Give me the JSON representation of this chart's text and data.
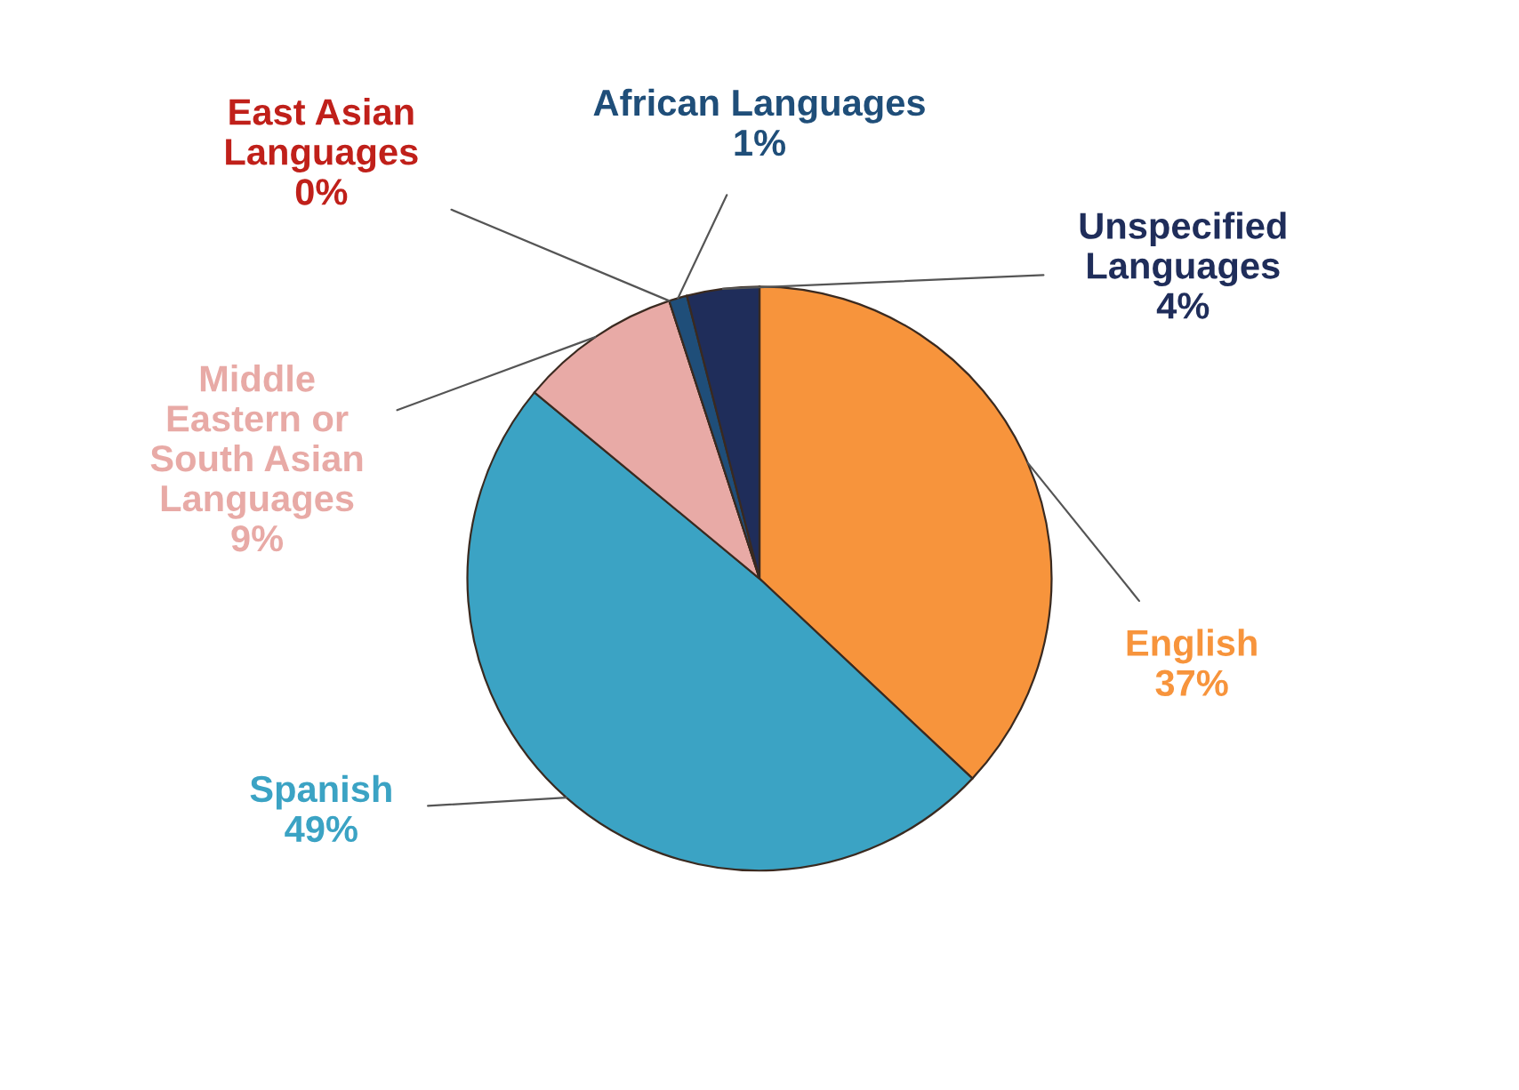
{
  "chart_data": {
    "type": "pie",
    "categories": [
      "English",
      "Spanish",
      "Middle\nEastern or\nSouth Asian\nLanguages",
      "East Asian\nLanguages",
      "African Languages",
      "Unspecified\nLanguages"
    ],
    "values": [
      37,
      49,
      9,
      0,
      1,
      4
    ],
    "value_labels": [
      "37%",
      "49%",
      "9%",
      "0%",
      "1%",
      "4%"
    ],
    "colors": [
      "#f7943c",
      "#3ba3c4",
      "#e8aaa6",
      "#c0201a",
      "#1f4e79",
      "#1f2d5a"
    ],
    "legend": false
  }
}
